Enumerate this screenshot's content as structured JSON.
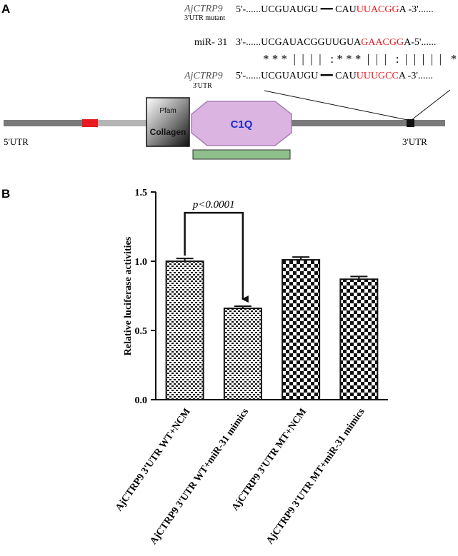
{
  "panel_a": {
    "label": "A",
    "mutant_gene": "AjCTRP9",
    "mutant_sub": "3'UTR mutant",
    "mutant_prefix": "5'-......UCGUAUGU",
    "mutant_mid": "CAU",
    "mutant_red": "UUACGG",
    "mutant_suffix": "A -3'......",
    "mir_name": "miR- 31",
    "mir_prefix": "3'-......UCGAUACGGUUGUA",
    "mir_red": "GAACGG",
    "mir_suffix": "A-5'......",
    "pair_marks": "* * *  |  |  |  |   : * * *  |  |  |   :  |  |  |  |  |   *",
    "wt_gene": "AjCTRP9",
    "wt_sub": "3'UTR",
    "wt_prefix": "5'-......UCGUAUGU",
    "wt_mid": "CAU",
    "wt_red": "UUUGCC",
    "wt_suffix": "A -3'......",
    "utr5": "5'UTR",
    "utr3": "3'UTR",
    "pfam_label": "Pfam",
    "collagen_label": "Collagen",
    "c1q_label": "C1Q",
    "colors": {
      "red": "#e8191f",
      "c1q_fill": "#dcb4e2",
      "c1q_text": "#1a2fc8",
      "bar_green": "#8fbf8a",
      "backbone": "#7a7a7a"
    }
  },
  "panel_b": {
    "label": "B",
    "pvalue": "p<0.0001"
  },
  "chart_data": {
    "type": "bar",
    "categories": [
      "AjCTRP9 3'UTR WT+NCM",
      "AjCTRP9 3'UTR WT+miR-31 mimics",
      "AjCTRP9 3'UTR MT+NCM",
      "AjCTRP9 3'UTR MT+miR-31 mimics"
    ],
    "values": [
      1.0,
      0.66,
      1.01,
      0.87
    ],
    "errors": [
      0.02,
      0.015,
      0.02,
      0.02
    ],
    "ylabel": "Relative luciferase activities",
    "ylim": [
      0,
      1.5
    ],
    "yticks": [
      "0.0",
      "0.5",
      "1.0",
      "1.5"
    ],
    "patterns": [
      "fine-hatch",
      "fine-hatch",
      "checker",
      "checker"
    ],
    "grid": false
  }
}
